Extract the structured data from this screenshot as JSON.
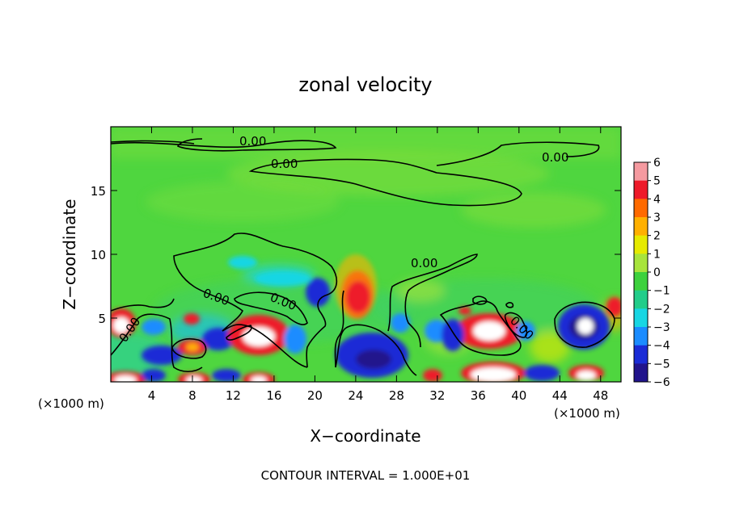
{
  "chart_data": {
    "type": "heatmap",
    "title": "zonal velocity",
    "xlabel": "X−coordinate",
    "ylabel": "Z−coordinate",
    "x_unit_label": "(×1000 m)",
    "x_unit_label_right": "(×1000 m)",
    "footer": "CONTOUR INTERVAL = 1.000E+01",
    "xlim": [
      0,
      50
    ],
    "ylim": [
      0,
      20
    ],
    "x_ticks": [
      4,
      8,
      12,
      16,
      20,
      24,
      28,
      32,
      36,
      40,
      44,
      48
    ],
    "x_tick_labels": [
      "4",
      "8",
      "12",
      "16",
      "20",
      "24",
      "28",
      "32",
      "36",
      "40",
      "44",
      "48"
    ],
    "y_ticks": [
      5,
      10,
      15
    ],
    "y_tick_labels": [
      "5",
      "10",
      "15"
    ],
    "colorbar": {
      "range": [
        -6,
        6
      ],
      "levels": [
        6,
        5,
        4,
        3,
        2,
        1,
        0,
        -1,
        -2,
        -3,
        -4,
        -5,
        -6
      ],
      "labels": [
        "6",
        "5",
        "4",
        "3",
        "2",
        "1",
        "0",
        "−1",
        "−2",
        "−3",
        "−4",
        "−5",
        "−6"
      ],
      "colors": [
        "#f59aa0",
        "#ee1a2a",
        "#ff6a00",
        "#ffb000",
        "#e6ea00",
        "#a8e43c",
        "#3dd13d",
        "#22cd8a",
        "#18d6e3",
        "#1b8cff",
        "#1a2cd6",
        "#21148c",
        "#7a18a8"
      ]
    },
    "contour_level": 0.0,
    "contour_label": "0.00",
    "features": [
      {
        "x": 15,
        "z": 3.5,
        "value": 7,
        "sign": "positive"
      },
      {
        "x": 24,
        "z": 6.5,
        "value": 4.5,
        "sign": "positive"
      },
      {
        "x": 36.5,
        "z": 4,
        "value": 7,
        "sign": "positive"
      },
      {
        "x": 1,
        "z": 4.3,
        "value": 6,
        "sign": "positive"
      },
      {
        "x": 46.5,
        "z": 4.2,
        "value": -7,
        "sign": "negative"
      },
      {
        "x": 24.5,
        "z": 2,
        "value": -5,
        "sign": "negative"
      },
      {
        "x": 36,
        "z": 1,
        "value": 7,
        "sign": "positive"
      },
      {
        "x": 20,
        "z": 7,
        "value": -3,
        "sign": "negative"
      },
      {
        "x": 17,
        "z": 8,
        "value": -2,
        "sign": "negative"
      }
    ]
  }
}
